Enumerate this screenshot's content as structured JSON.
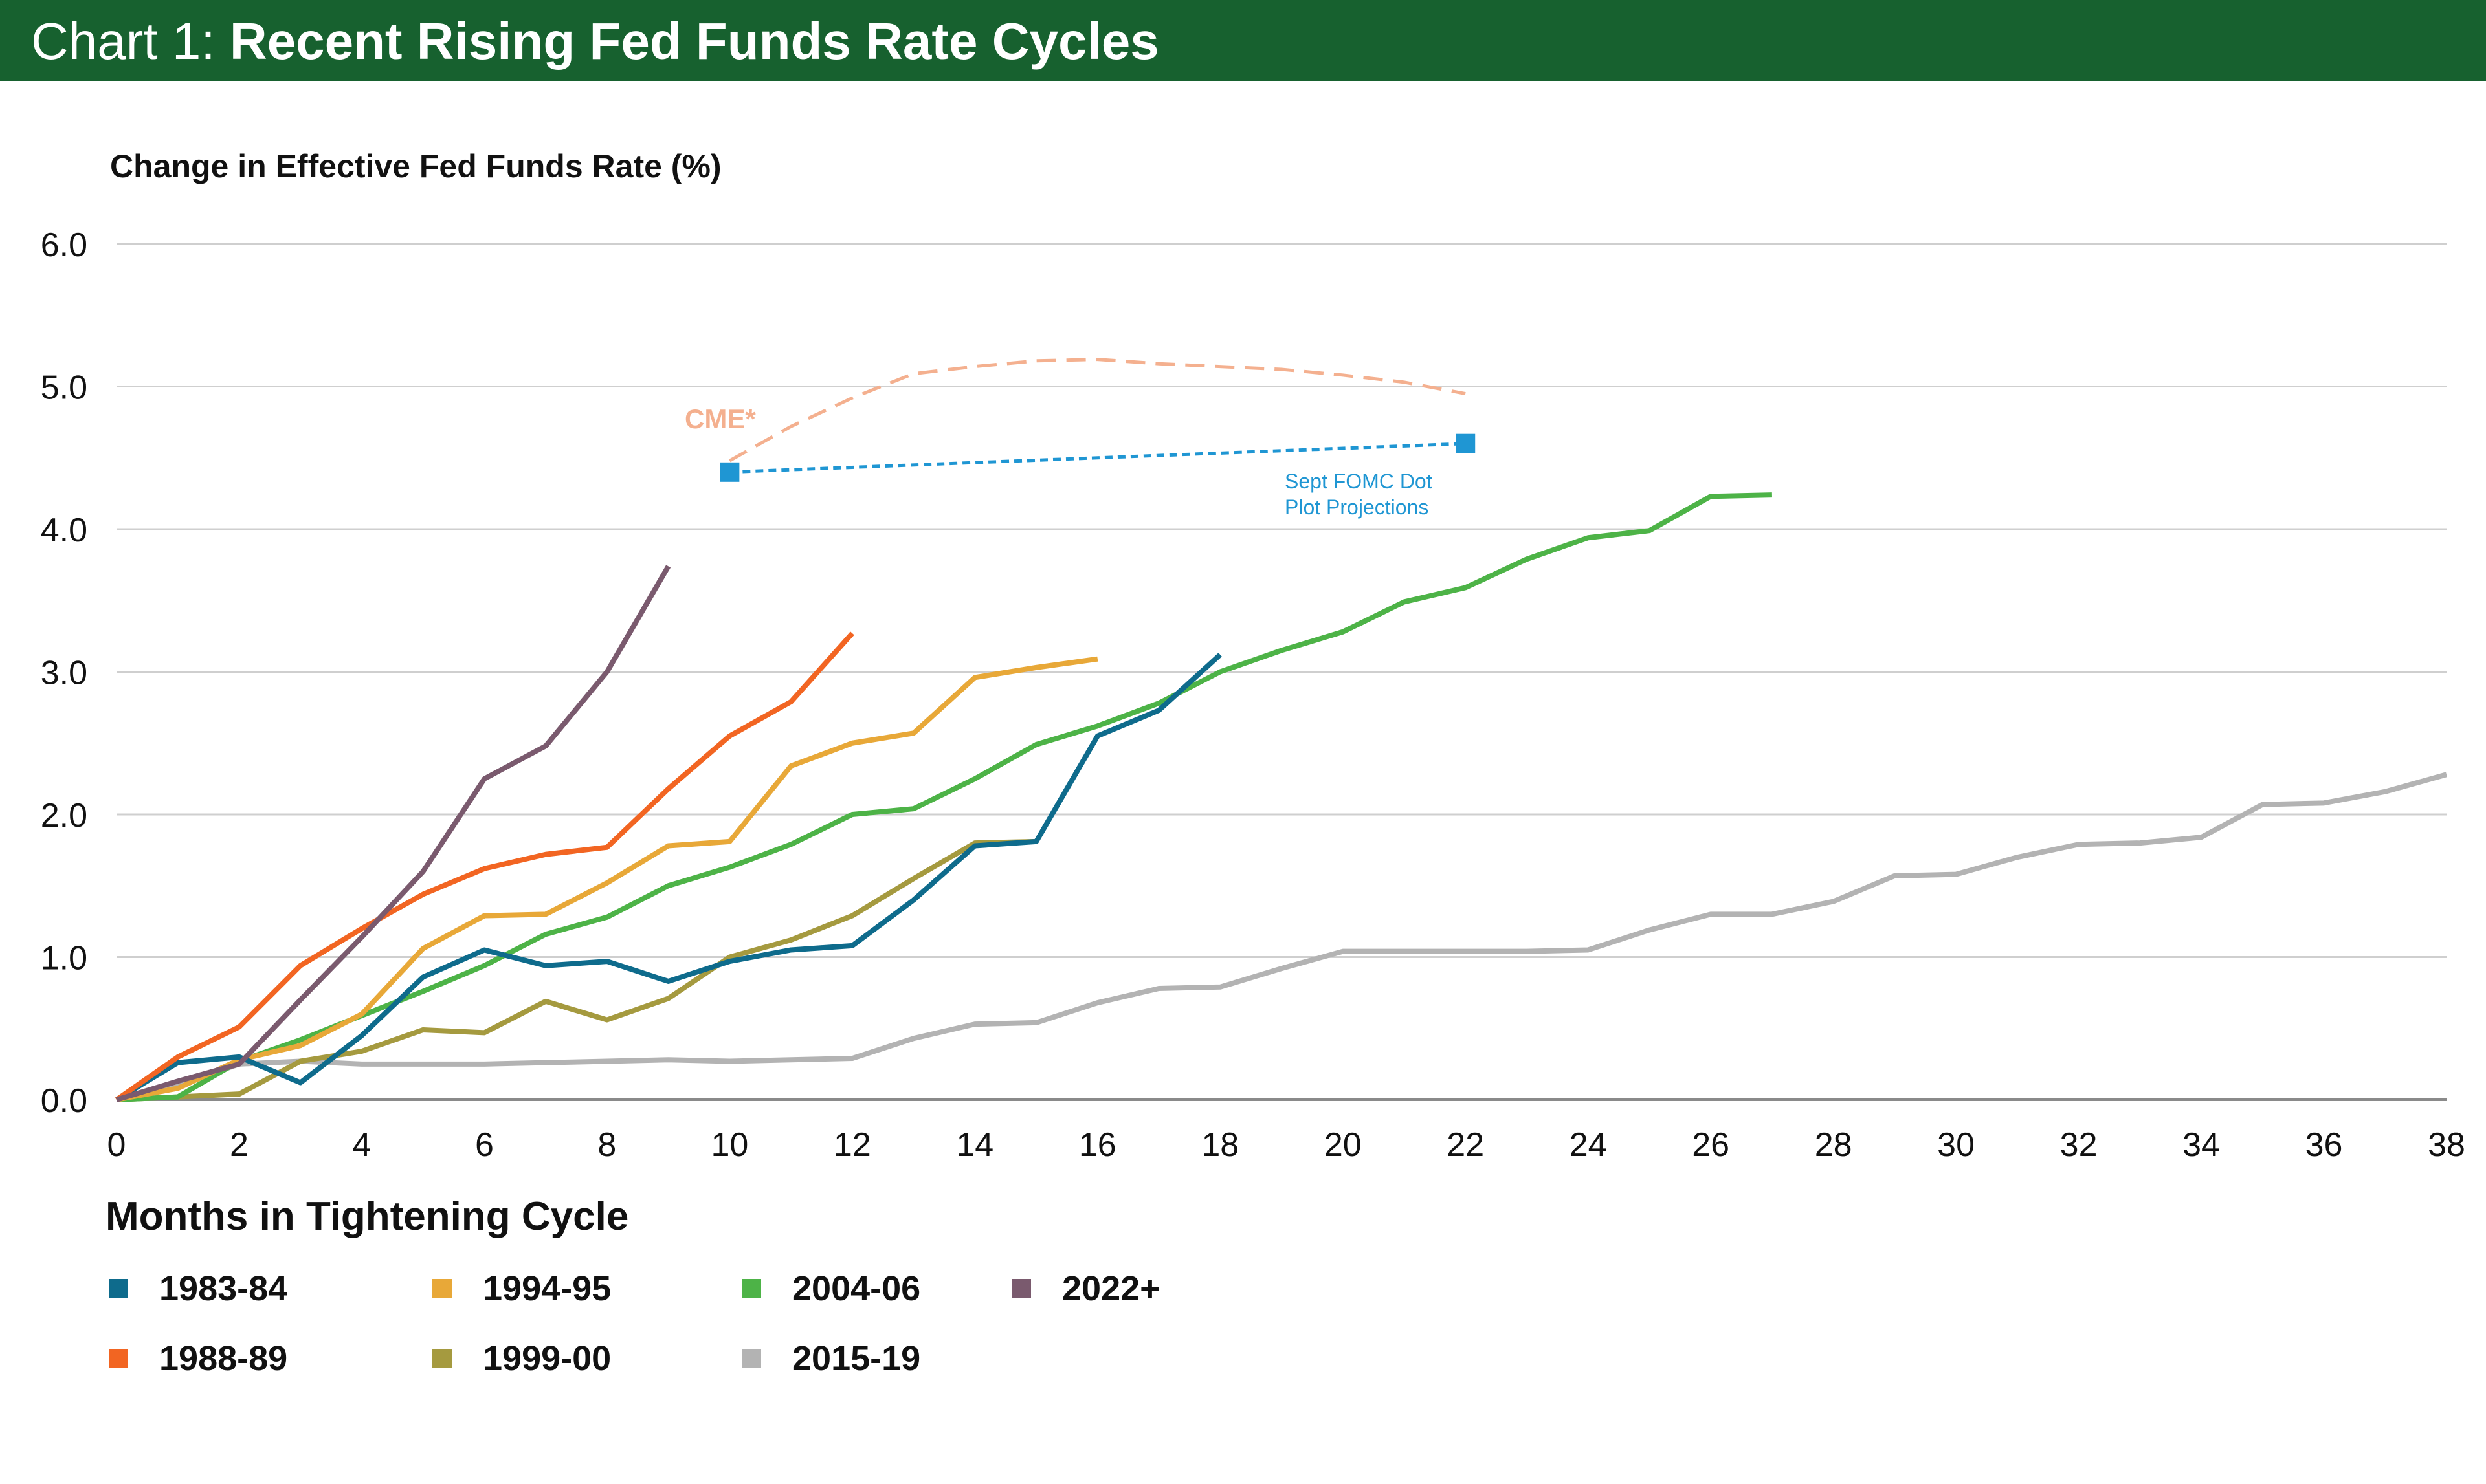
{
  "header": {
    "prefix": "Chart 1:",
    "title": "Recent Rising Fed Funds Rate Cycles"
  },
  "chart_data": {
    "type": "line",
    "ylabel": "Change in Effective Fed Funds Rate (%)",
    "xlabel": "Months in Tightening Cycle",
    "xlim": [
      0,
      38
    ],
    "ylim": [
      0,
      6
    ],
    "x_ticks": [
      0,
      2,
      4,
      6,
      8,
      10,
      12,
      14,
      16,
      18,
      20,
      22,
      24,
      26,
      28,
      30,
      32,
      34,
      36,
      38
    ],
    "y_ticks": [
      "0.0",
      "1.0",
      "2.0",
      "3.0",
      "4.0",
      "5.0",
      "6.0"
    ],
    "grid": "horizontal",
    "legend_position": "bottom-left",
    "series": [
      {
        "name": "1983-84",
        "color": "#0e6b8c",
        "x": [
          0,
          1,
          2,
          3,
          4,
          5,
          6,
          7,
          8,
          9,
          10,
          11,
          12,
          13,
          14,
          15,
          16,
          17,
          18
        ],
        "y": [
          0,
          0.26,
          0.3,
          0.12,
          0.45,
          0.86,
          1.05,
          0.94,
          0.97,
          0.83,
          0.97,
          1.05,
          1.08,
          1.4,
          1.78,
          1.81,
          2.55,
          2.73,
          3.12
        ]
      },
      {
        "name": "1988-89",
        "color": "#f26522",
        "x": [
          0,
          1,
          2,
          3,
          4,
          5,
          6,
          7,
          8,
          9,
          10,
          11,
          12
        ],
        "y": [
          0,
          0.3,
          0.51,
          0.94,
          1.2,
          1.44,
          1.62,
          1.72,
          1.77,
          2.18,
          2.55,
          2.79,
          3.27
        ]
      },
      {
        "name": "1994-95",
        "color": "#e8a838",
        "x": [
          0,
          1,
          2,
          3,
          4,
          5,
          6,
          7,
          8,
          9,
          10,
          11,
          12,
          13,
          14,
          15,
          16
        ],
        "y": [
          0,
          0.08,
          0.28,
          0.38,
          0.6,
          1.06,
          1.29,
          1.3,
          1.52,
          1.78,
          1.81,
          2.34,
          2.5,
          2.57,
          2.96,
          3.03,
          3.09
        ]
      },
      {
        "name": "1999-00",
        "color": "#a59a3f",
        "x": [
          0,
          1,
          2,
          3,
          4,
          5,
          6,
          7,
          8,
          9,
          10,
          11,
          12,
          13,
          14,
          15
        ],
        "y": [
          0,
          0.02,
          0.04,
          0.27,
          0.34,
          0.49,
          0.47,
          0.69,
          0.56,
          0.71,
          1.0,
          1.12,
          1.29,
          1.55,
          1.8,
          1.81
        ]
      },
      {
        "name": "2004-06",
        "color": "#4db347",
        "x": [
          0,
          1,
          2,
          3,
          4,
          5,
          6,
          7,
          8,
          9,
          10,
          11,
          12,
          13,
          14,
          15,
          16,
          17,
          18,
          19,
          20,
          21,
          22,
          23,
          24,
          25,
          26,
          27
        ],
        "y": [
          0,
          0.02,
          0.27,
          0.42,
          0.59,
          0.76,
          0.94,
          1.16,
          1.28,
          1.5,
          1.63,
          1.79,
          2.0,
          2.04,
          2.25,
          2.49,
          2.62,
          2.78,
          3.0,
          3.15,
          3.28,
          3.49,
          3.59,
          3.79,
          3.94,
          3.99,
          4.23,
          4.24
        ]
      },
      {
        "name": "2015-19",
        "color": "#b3b3b3",
        "x": [
          0,
          1,
          2,
          3,
          4,
          5,
          6,
          7,
          8,
          9,
          10,
          11,
          12,
          13,
          14,
          15,
          16,
          17,
          18,
          19,
          20,
          21,
          22,
          23,
          24,
          25,
          26,
          27,
          28,
          29,
          30,
          31,
          32,
          33,
          34,
          35,
          36,
          37,
          38
        ],
        "y": [
          0,
          0.1,
          0.25,
          0.27,
          0.25,
          0.25,
          0.25,
          0.26,
          0.27,
          0.28,
          0.27,
          0.28,
          0.29,
          0.43,
          0.53,
          0.54,
          0.68,
          0.78,
          0.79,
          0.92,
          1.04,
          1.04,
          1.04,
          1.04,
          1.05,
          1.19,
          1.3,
          1.3,
          1.39,
          1.57,
          1.58,
          1.7,
          1.79,
          1.8,
          1.84,
          2.07,
          2.08,
          2.16,
          2.28
        ]
      },
      {
        "name": "2022+",
        "color": "#7a5a6e",
        "x": [
          0,
          1,
          2,
          3,
          4,
          5,
          6,
          7,
          8,
          9
        ],
        "y": [
          0,
          0.13,
          0.25,
          0.7,
          1.14,
          1.6,
          2.25,
          2.48,
          3.0,
          3.74
        ]
      }
    ],
    "projections": [
      {
        "name": "CME*",
        "color": "#f4b08f",
        "style": "dashed",
        "x": [
          10,
          11,
          12,
          13,
          14,
          15,
          16,
          17,
          18,
          19,
          20,
          21,
          22
        ],
        "y": [
          4.48,
          4.72,
          4.92,
          5.09,
          5.14,
          5.18,
          5.19,
          5.16,
          5.14,
          5.12,
          5.08,
          5.03,
          4.95
        ]
      },
      {
        "name": "Sept FOMC Dot Plot Projections",
        "color": "#1f96d3",
        "style": "dotted",
        "x": [
          10,
          22
        ],
        "y": [
          4.4,
          4.6
        ],
        "label_lines": [
          "Sept FOMC Dot",
          "Plot Projections"
        ]
      }
    ]
  }
}
